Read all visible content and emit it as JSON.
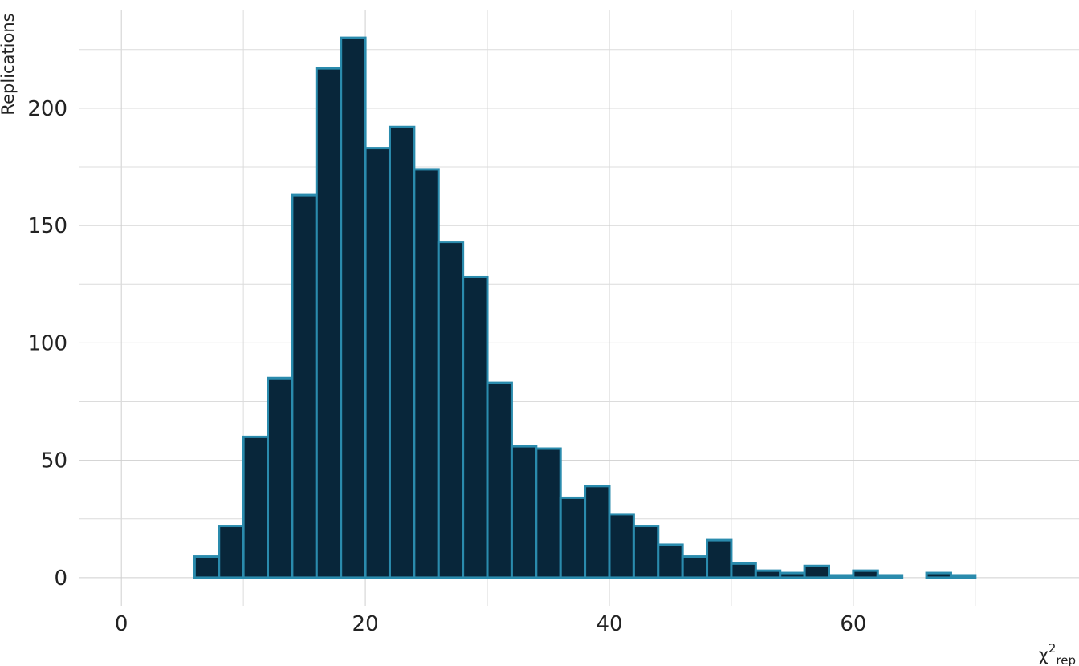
{
  "chart_data": {
    "type": "bar",
    "title": "",
    "xlabel": "χ",
    "xlabel_superscript": "2",
    "xlabel_subscript": "rep",
    "ylabel": "Replications",
    "bin_width": 2,
    "bin_start": 0,
    "x": [
      1,
      3,
      5,
      7,
      9,
      11,
      13,
      15,
      17,
      19,
      21,
      23,
      25,
      27,
      29,
      31,
      33,
      35,
      37,
      39,
      41,
      43,
      45,
      47,
      49,
      51,
      53,
      55,
      57,
      59,
      61,
      63,
      65,
      67,
      69,
      71,
      73
    ],
    "values": [
      0,
      0,
      0,
      9,
      22,
      60,
      85,
      163,
      217,
      230,
      183,
      192,
      174,
      143,
      128,
      83,
      56,
      55,
      34,
      39,
      27,
      22,
      14,
      9,
      16,
      6,
      3,
      2,
      5,
      1,
      3,
      1,
      0,
      2,
      1,
      0,
      0
    ],
    "xlim": [
      -3.5,
      78.5
    ],
    "ylim": [
      -12,
      242
    ],
    "x_ticks": [
      0,
      20,
      40,
      60
    ],
    "x_tick_labels": [
      "0",
      "20",
      "40",
      "60"
    ],
    "y_ticks": [
      0,
      50,
      100,
      150,
      200
    ],
    "y_tick_labels": [
      "0",
      "50",
      "100",
      "150",
      "200"
    ],
    "grid": true,
    "legend": "none",
    "colors": {
      "bar_fill": "#08263a",
      "bar_outline": "#2a8bad"
    }
  }
}
